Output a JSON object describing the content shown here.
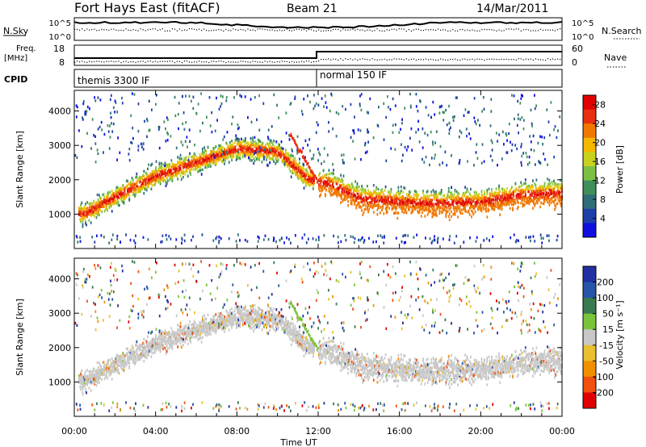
{
  "header": {
    "title": "Fort Hays East (fitACF)",
    "beam": "Beam 21",
    "date": "14/Mar/2011"
  },
  "status_panels": {
    "nsky_label": "N.Sky",
    "nsky_ticks": [
      "10^5",
      "10^0"
    ],
    "nsearch_label": "N.Search",
    "nsearch_ticks": [
      "10^5",
      "10^0"
    ],
    "freq_label_line1": "Freq.",
    "freq_label_line2": "[MHz]",
    "freq_ticks": [
      "18",
      "8"
    ],
    "nave_label": "Nave",
    "nave_ticks": [
      "60",
      "0"
    ],
    "cpid_label": "CPID",
    "cpid_modes": [
      {
        "label": "themis 3300 IF",
        "start_hour": 0
      },
      {
        "label": "normal 150 IF",
        "start_hour": 12
      }
    ]
  },
  "chart_data": [
    {
      "type": "heatmap",
      "quantity": "power",
      "xlabel": "Time UT",
      "ylabel": "Slant Range [km]",
      "xlim": [
        0,
        24
      ],
      "xticks": [
        "00:00",
        "04:00",
        "08:00",
        "12:00",
        "16:00",
        "20:00",
        "00:00"
      ],
      "ylim": [
        0,
        4600
      ],
      "yticks": [
        1000,
        2000,
        3000,
        4000
      ],
      "colorbar": {
        "label": "Power [dB]",
        "ticks": [
          4,
          8,
          12,
          16,
          20,
          24,
          28
        ],
        "range": [
          0,
          30
        ],
        "colors": [
          "#1010e0",
          "#1e3fa8",
          "#2f6e78",
          "#3f8f5a",
          "#7bc043",
          "#c8d21e",
          "#f5b800",
          "#f07800",
          "#e83010",
          "#e00000"
        ]
      },
      "echo_bands": [
        {
          "hour_start": 0.2,
          "hour_end": 11.8,
          "description": "ionospheric scatter",
          "range_km_at_hours": [
            [
              0.5,
              1000
            ],
            [
              2,
              1500
            ],
            [
              4,
              2100
            ],
            [
              6,
              2500
            ],
            [
              8,
              2900
            ],
            [
              10,
              2800
            ],
            [
              11.5,
              2000
            ]
          ],
          "peak_power_db": 30
        },
        {
          "hour_start": 12.0,
          "hour_end": 24.0,
          "description": "ionospheric scatter",
          "range_km_at_hours": [
            [
              12.5,
              1900
            ],
            [
              14,
              1450
            ],
            [
              16,
              1350
            ],
            [
              18,
              1300
            ],
            [
              20,
              1350
            ],
            [
              22,
              1550
            ],
            [
              23.8,
              1600
            ]
          ],
          "peak_power_db": 30
        }
      ]
    },
    {
      "type": "heatmap",
      "quantity": "velocity",
      "xlabel": "Time UT",
      "ylabel": "Slant Range [km]",
      "xlim": [
        0,
        24
      ],
      "xticks": [
        "00:00",
        "04:00",
        "08:00",
        "12:00",
        "16:00",
        "20:00",
        "00:00"
      ],
      "ylim": [
        0,
        4600
      ],
      "yticks": [
        1000,
        2000,
        3000,
        4000
      ],
      "colorbar": {
        "label": "Velocity [m s⁻¹]",
        "ticks": [
          200,
          100,
          50,
          15,
          -15,
          -50,
          -100,
          -200
        ],
        "colors": [
          "#2030a0",
          "#2855a8",
          "#3a7a50",
          "#7ac43a",
          "#c8c8c8",
          "#e8c030",
          "#f09000",
          "#f05010",
          "#e00000"
        ]
      },
      "dominant_value": "ground scatter (grey)"
    }
  ]
}
